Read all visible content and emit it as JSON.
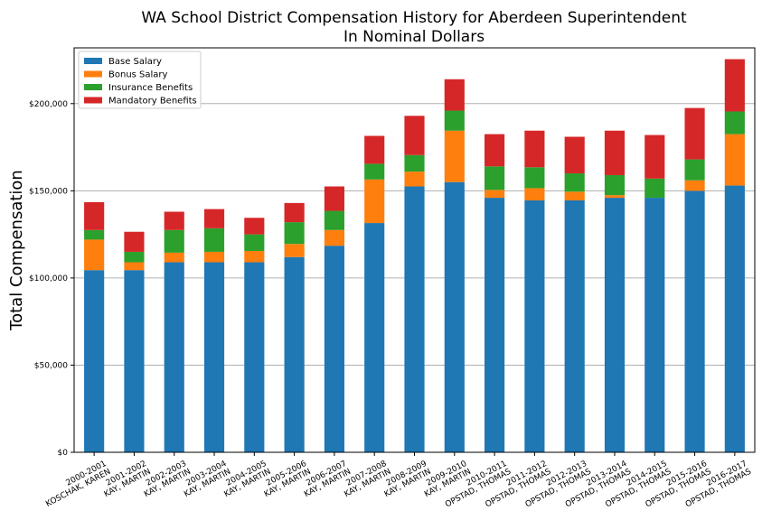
{
  "chart_data": {
    "type": "bar",
    "stacked": true,
    "title": "WA School District Compensation History for Aberdeen Superintendent",
    "subtitle": "In Nominal Dollars",
    "xlabel": "",
    "ylabel": "Total Compensation",
    "ylim": [
      0,
      232000
    ],
    "yticks": [
      0,
      50000,
      100000,
      150000,
      200000
    ],
    "ytick_labels": [
      "$0",
      "$50,000",
      "$100,000",
      "$150,000",
      "$200,000"
    ],
    "grid": "horizontal",
    "legend_position": "top-left",
    "categories": [
      [
        "2000-2001",
        "KOSCHAK, KAREN"
      ],
      [
        "2001-2002",
        "KAY, MARTIN"
      ],
      [
        "2002-2003",
        "KAY, MARTIN"
      ],
      [
        "2003-2004",
        "KAY, MARTIN"
      ],
      [
        "2004-2005",
        "KAY, MARTIN"
      ],
      [
        "2005-2006",
        "KAY, MARTIN"
      ],
      [
        "2006-2007",
        "KAY, MARTIN"
      ],
      [
        "2007-2008",
        "KAY, MARTIN"
      ],
      [
        "2008-2009",
        "KAY, MARTIN"
      ],
      [
        "2009-2010",
        "KAY, MARTIN"
      ],
      [
        "2010-2011",
        "OPSTAD, THOMAS"
      ],
      [
        "2011-2012",
        "OPSTAD, THOMAS"
      ],
      [
        "2012-2013",
        "OPSTAD, THOMAS"
      ],
      [
        "2013-2014",
        "OPSTAD, THOMAS"
      ],
      [
        "2014-2015",
        "OPSTAD, THOMAS"
      ],
      [
        "2015-2016",
        "OPSTAD, THOMAS"
      ],
      [
        "2016-2017",
        "OPSTAD, THOMAS"
      ]
    ],
    "series": [
      {
        "name": "Base Salary",
        "color": "#1f77b4",
        "values": [
          104500,
          104500,
          109000,
          109000,
          109000,
          112000,
          118500,
          131500,
          152500,
          155000,
          146000,
          144500,
          144500,
          146000,
          146000,
          150000,
          153000
        ]
      },
      {
        "name": "Bonus Salary",
        "color": "#ff7f0e",
        "values": [
          17500,
          4500,
          5500,
          6000,
          6500,
          7500,
          9000,
          25000,
          8500,
          29500,
          4500,
          7000,
          5000,
          1500,
          0,
          6000,
          29500
        ]
      },
      {
        "name": "Insurance Benefits",
        "color": "#2ca02c",
        "values": [
          5500,
          6000,
          13000,
          13500,
          9500,
          12500,
          11000,
          9000,
          9500,
          11500,
          13500,
          12000,
          10500,
          11500,
          11000,
          12000,
          13000
        ]
      },
      {
        "name": "Mandatory Benefits",
        "color": "#d62728",
        "values": [
          16000,
          11500,
          10500,
          11000,
          9500,
          11000,
          14000,
          16000,
          22500,
          18000,
          18500,
          21000,
          21000,
          25500,
          25000,
          29500,
          30000
        ]
      }
    ]
  }
}
